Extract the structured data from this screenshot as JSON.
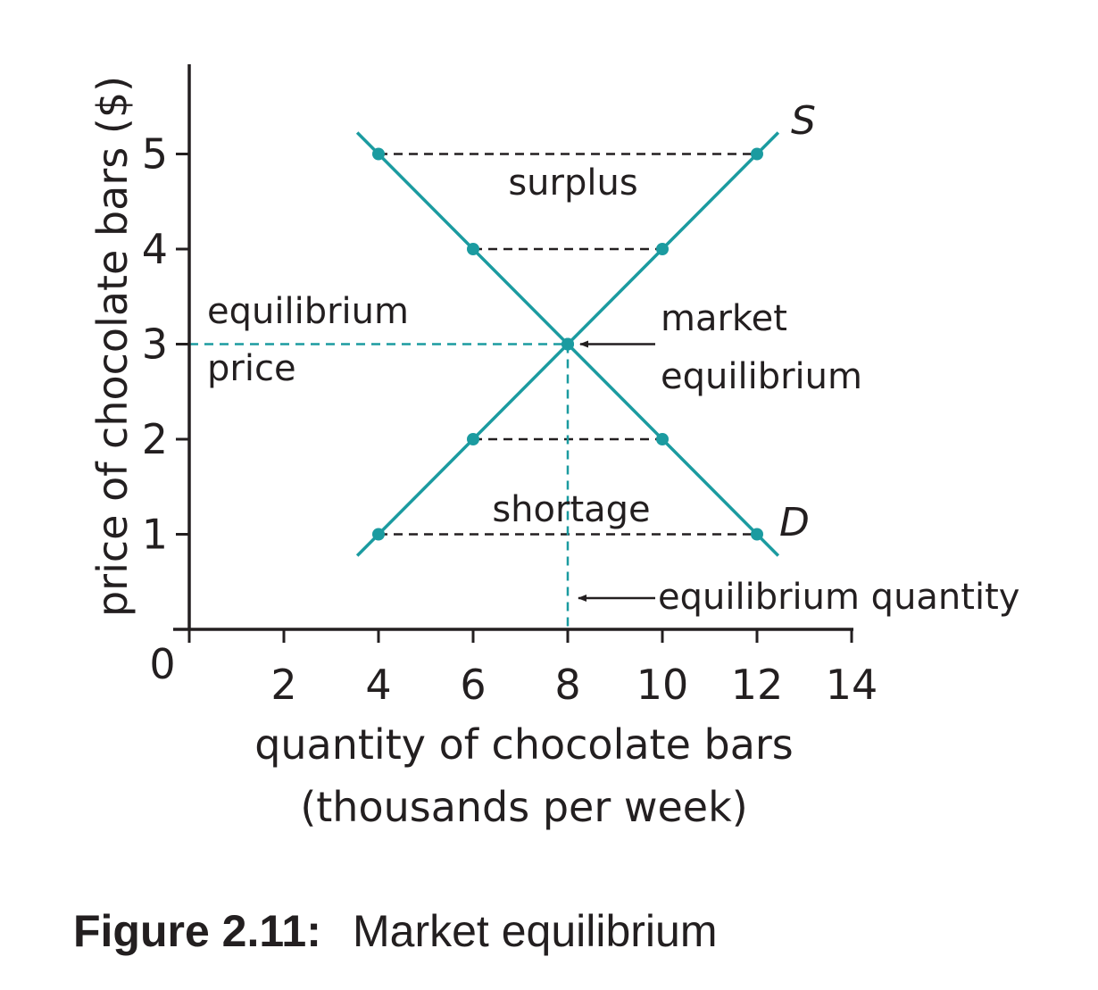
{
  "chart_data": {
    "type": "line",
    "xlabel": [
      "quantity of chocolate bars",
      "(thousands per week)"
    ],
    "ylabel": "price of chocolate bars ($)",
    "origin_label": "0",
    "xlim": [
      0,
      14
    ],
    "ylim": [
      0,
      5.5
    ],
    "x_ticks": [
      2,
      4,
      6,
      8,
      10,
      12,
      14
    ],
    "y_ticks": [
      1,
      2,
      3,
      4,
      5
    ],
    "color": "#1b9ba0",
    "series": [
      {
        "name": "S",
        "x": [
          4,
          6,
          8,
          10,
          12
        ],
        "y": [
          1,
          2,
          3,
          4,
          5
        ]
      },
      {
        "name": "D",
        "x": [
          4,
          6,
          8,
          10,
          12
        ],
        "y": [
          5,
          4,
          3,
          2,
          1
        ]
      }
    ],
    "annotations": {
      "surplus": "surplus",
      "shortage": "shortage",
      "equilibrium_price": [
        "equilibrium",
        "price"
      ],
      "market_equilibrium": [
        "market",
        "equilibrium"
      ],
      "equilibrium_quantity": "equilibrium quantity"
    }
  },
  "caption": {
    "label": "Figure 2.11:",
    "text": " Market equilibrium"
  }
}
